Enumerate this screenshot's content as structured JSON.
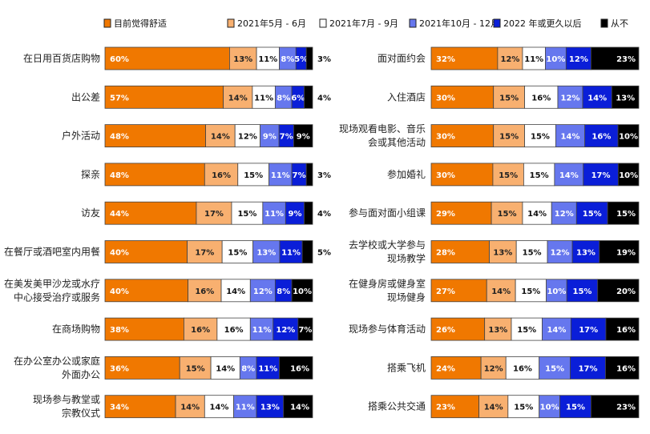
{
  "chart_data": {
    "type": "bar",
    "orientation": "horizontal",
    "stacked": true,
    "unit": "%",
    "legend": {
      "placement": "top"
    },
    "series": [
      {
        "name": "目前觉得舒适",
        "color": "#F07800"
      },
      {
        "name": "2021年5月 - 6月",
        "color": "#F8B070"
      },
      {
        "name": "2021年7月 - 9月",
        "color": "#FFFFFF"
      },
      {
        "name": "2021年10月 - 12月",
        "color": "#6677EE"
      },
      {
        "name": "2022 年或更久以后",
        "color": "#0A1ED8"
      },
      {
        "name": "从不",
        "color": "#000000"
      }
    ],
    "panels": [
      {
        "categories": [
          "在日用百货店购物",
          "出公差",
          "户外活动",
          "探亲",
          "访友",
          "在餐厅或酒吧室内用餐",
          "在美发美甲沙龙或水疗\n中心接受治疗或服务",
          "在商场购物",
          "在办公室办公或家庭\n外面办公",
          "现场参与教堂或\n宗教仪式"
        ],
        "values": [
          [
            60,
            13,
            11,
            8,
            5,
            3
          ],
          [
            57,
            14,
            11,
            8,
            6,
            4
          ],
          [
            48,
            14,
            12,
            9,
            7,
            9
          ],
          [
            48,
            16,
            15,
            11,
            7,
            3
          ],
          [
            44,
            17,
            15,
            11,
            9,
            4
          ],
          [
            40,
            17,
            15,
            13,
            11,
            5
          ],
          [
            40,
            16,
            14,
            12,
            8,
            10
          ],
          [
            38,
            16,
            16,
            11,
            12,
            7
          ],
          [
            36,
            15,
            14,
            8,
            11,
            16
          ],
          [
            34,
            14,
            14,
            11,
            13,
            14
          ]
        ]
      },
      {
        "categories": [
          "面对面约会",
          "入住酒店",
          "现场观看电影、音乐\n会或其他活动",
          "参加婚礼",
          "参与面对面小组课",
          "去学校或大学参与\n现场教学",
          "在健身房或健身室\n现场健身",
          "现场参与体育活动",
          "搭乘飞机",
          "搭乘公共交通"
        ],
        "values": [
          [
            32,
            12,
            11,
            10,
            12,
            23
          ],
          [
            30,
            15,
            16,
            12,
            14,
            13
          ],
          [
            30,
            15,
            15,
            14,
            16,
            10
          ],
          [
            30,
            15,
            15,
            14,
            17,
            10
          ],
          [
            29,
            15,
            14,
            12,
            15,
            15
          ],
          [
            28,
            13,
            15,
            12,
            13,
            19
          ],
          [
            27,
            14,
            15,
            10,
            15,
            20
          ],
          [
            26,
            13,
            15,
            14,
            17,
            16
          ],
          [
            24,
            12,
            16,
            15,
            17,
            16
          ],
          [
            23,
            14,
            15,
            10,
            15,
            23
          ]
        ]
      }
    ]
  }
}
